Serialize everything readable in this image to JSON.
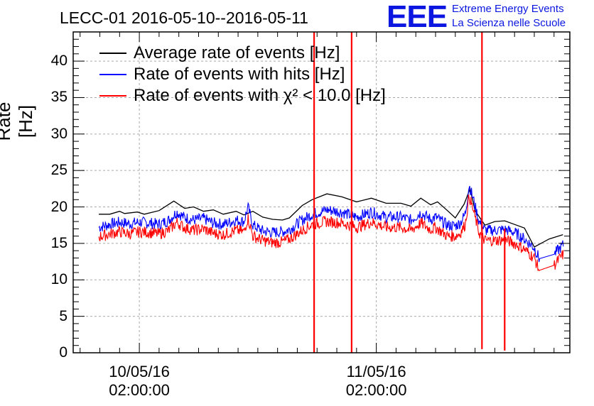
{
  "header": {
    "title": "LECC-01 2016-05-10--2016-05-11",
    "logo_text": "EEE",
    "logo_line1": "Extreme Energy Events",
    "logo_line2": "La Scienza nelle Scuole",
    "logo_color": "#0b17e0"
  },
  "chart_data": {
    "type": "line",
    "title": "LECC-01 2016-05-10--2016-05-11",
    "ylabel": "Rate [Hz]",
    "xlabel": "",
    "ylim": [
      0,
      44
    ],
    "yticks": [
      0,
      5,
      10,
      15,
      20,
      25,
      30,
      35,
      40
    ],
    "x_unit": "hours since 2016-05-09 00:00",
    "xlim": [
      19.3,
      69.6
    ],
    "xticks": [
      {
        "x": 26,
        "label_date": "10/05/16",
        "label_time": "02:00:00"
      },
      {
        "x": 50,
        "label_date": "11/05/16",
        "label_time": "02:00:00"
      }
    ],
    "grid": true,
    "legend_position": "top-left",
    "series": [
      {
        "name": "Average rate of events [Hz]",
        "color": "#000000",
        "x": [
          21.9,
          23.0,
          24.0,
          24.5,
          25.8,
          26.5,
          28.0,
          29.5,
          30.6,
          31.5,
          32.5,
          33.5,
          34.5,
          35.8,
          36.6,
          37.5,
          38.5,
          39.5,
          40.5,
          41.2,
          42.5,
          43.5,
          45.0,
          46.5,
          48.0,
          49.5,
          51.0,
          52.5,
          53.5,
          54.5,
          55.5,
          56.2,
          57.2,
          58.0,
          58.9,
          59.5,
          60.0,
          61.0,
          62.0,
          63.0,
          64.0,
          65.0,
          66.0,
          67.5,
          68.9
        ],
        "y": [
          19.0,
          19.0,
          19.4,
          19.1,
          19.3,
          19.0,
          19.5,
          20.8,
          19.8,
          20.0,
          19.4,
          19.6,
          19.0,
          19.4,
          18.9,
          19.4,
          18.6,
          18.3,
          18.2,
          18.5,
          20.2,
          21.0,
          21.8,
          21.4,
          20.7,
          21.2,
          20.5,
          20.5,
          20.1,
          21.2,
          20.3,
          20.7,
          19.5,
          18.5,
          20.4,
          22.5,
          19.5,
          17.5,
          18.0,
          18.1,
          17.6,
          17.1,
          14.5,
          15.6,
          16.2
        ]
      },
      {
        "name": "Rate of events with hits [Hz]",
        "color": "#0000ff",
        "x": [
          21.9,
          23.0,
          24.0,
          25.0,
          26.0,
          27.0,
          28.0,
          29.0,
          29.8,
          30.5,
          31.5,
          32.5,
          33.5,
          34.5,
          35.8,
          36.6,
          37.0,
          37.5,
          38.5,
          39.5,
          40.5,
          41.2,
          42.5,
          43.5,
          45.0,
          46.5,
          48.0,
          49.5,
          51.0,
          52.5,
          53.5,
          54.5,
          55.5,
          56.0,
          57.2,
          58.0,
          58.5,
          59.0,
          59.4,
          59.8,
          60.4,
          61.0,
          62.0,
          63.0,
          64.0,
          65.0,
          66.0,
          66.5,
          68.0,
          69.0
        ],
        "y": [
          17.2,
          17.6,
          17.9,
          17.7,
          17.9,
          17.8,
          17.6,
          18.2,
          19.3,
          18.6,
          18.2,
          18.4,
          17.8,
          17.6,
          18.2,
          18.0,
          20.0,
          17.5,
          16.7,
          16.5,
          16.6,
          16.9,
          18.2,
          19.0,
          19.6,
          19.3,
          18.6,
          19.3,
          18.6,
          18.6,
          18.2,
          19.2,
          18.3,
          18.6,
          17.5,
          17.4,
          17.8,
          19.0,
          23.0,
          21.2,
          18.0,
          16.8,
          16.8,
          16.9,
          16.5,
          15.6,
          14.4,
          12.9,
          13.5,
          14.9
        ]
      },
      {
        "name": "Rate of events with χ² < 10.0 [Hz]",
        "color": "#ff0000",
        "x": [
          21.9,
          23.0,
          24.0,
          25.0,
          26.0,
          27.0,
          28.0,
          29.0,
          29.8,
          30.5,
          31.5,
          32.5,
          33.5,
          34.5,
          35.8,
          36.6,
          37.0,
          37.5,
          38.5,
          39.5,
          40.5,
          41.2,
          42.5,
          43.5,
          45.0,
          46.5,
          48.0,
          49.5,
          51.0,
          52.5,
          53.5,
          54.5,
          55.5,
          56.0,
          57.2,
          58.0,
          58.5,
          59.0,
          59.4,
          59.8,
          60.4,
          61.0,
          62.0,
          63.0,
          64.0,
          65.0,
          66.0,
          66.5,
          68.0,
          69.0
        ],
        "y": [
          15.9,
          16.3,
          16.6,
          16.3,
          16.6,
          16.5,
          16.3,
          16.8,
          17.9,
          17.2,
          16.8,
          17.0,
          16.4,
          16.2,
          16.8,
          16.6,
          18.5,
          16.0,
          15.4,
          15.1,
          15.2,
          15.6,
          16.8,
          17.6,
          18.0,
          17.8,
          17.2,
          17.9,
          17.2,
          17.2,
          16.8,
          17.8,
          16.9,
          17.2,
          16.0,
          16.0,
          16.4,
          17.6,
          21.5,
          19.6,
          16.5,
          15.4,
          15.4,
          15.5,
          15.0,
          14.2,
          13.0,
          11.3,
          12.0,
          13.6
        ]
      }
    ],
    "spikes": [
      {
        "series": "Rate of events with χ² < 10.0 [Hz]",
        "x": 43.7,
        "y_min": 0,
        "y_max": 44
      },
      {
        "series": "Rate of events with χ² < 10.0 [Hz]",
        "x": 47.5,
        "y_min": 0,
        "y_max": 44
      },
      {
        "series": "Rate of events with χ² < 10.0 [Hz]",
        "x": 60.7,
        "y_min": 0.5,
        "y_max": 44
      },
      {
        "series": "Rate of events with χ² < 10.0 [Hz]",
        "x": 63.0,
        "y_min": 0.3,
        "y_max": 17.0
      }
    ]
  }
}
